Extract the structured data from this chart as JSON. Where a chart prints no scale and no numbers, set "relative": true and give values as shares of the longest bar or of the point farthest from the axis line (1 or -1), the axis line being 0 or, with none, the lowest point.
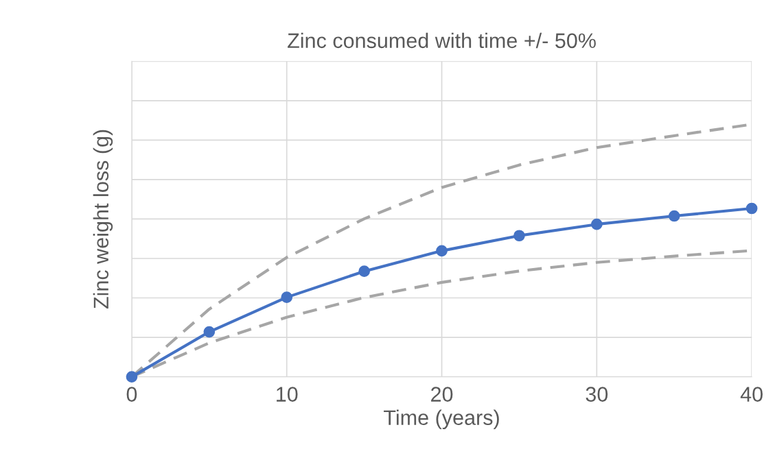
{
  "chart_data": {
    "type": "line",
    "title": "Zinc consumed with time +/- 50%",
    "xlabel": "Time (years)",
    "ylabel": "Zinc weight loss (g)",
    "x": [
      0,
      5,
      10,
      15,
      20,
      25,
      30,
      35,
      40
    ],
    "xlim": [
      0,
      40
    ],
    "xticks": [
      0,
      10,
      20,
      30,
      40
    ],
    "relative": true,
    "grid": true,
    "tick_labels": "x",
    "series": [
      {
        "color": "#a6a6a6",
        "marker": "none",
        "line_style": "dashed",
        "values": [
          0,
          0.268,
          0.473,
          0.626,
          0.75,
          0.839,
          0.908,
          0.955,
          1
        ]
      },
      {
        "color": "#a6a6a6",
        "marker": "none",
        "line_style": "dashed",
        "values": [
          0,
          0.134,
          0.236,
          0.314,
          0.374,
          0.419,
          0.453,
          0.478,
          0.5
        ]
      },
      {
        "color": "#4472c4",
        "marker": "circle",
        "line_style": "solid",
        "values": [
          0,
          0.178,
          0.315,
          0.418,
          0.499,
          0.559,
          0.604,
          0.637,
          0.667
        ]
      }
    ]
  }
}
